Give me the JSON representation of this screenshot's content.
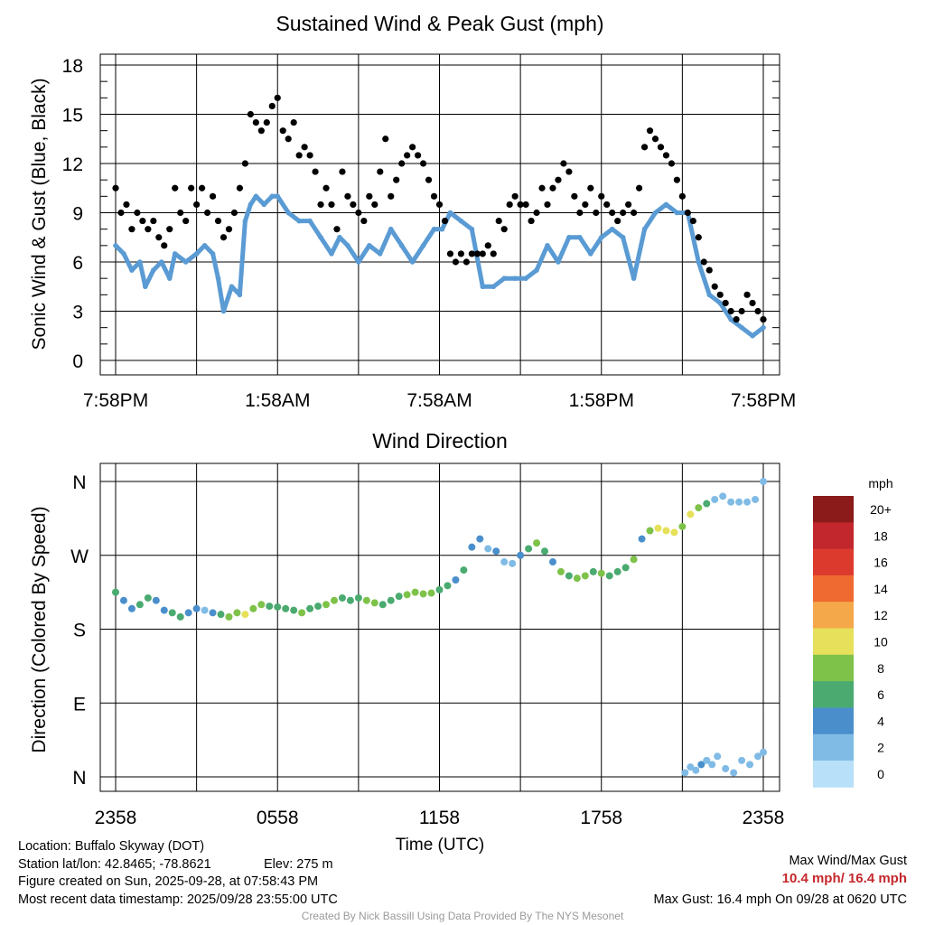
{
  "chart_data": [
    {
      "type": "scatter",
      "title": "Sustained Wind & Peak Gust (mph)",
      "ylabel": "Sonic Wind & Gust (Blue, Black)",
      "ylim": [
        0,
        18
      ],
      "yticks": [
        0,
        3,
        6,
        9,
        12,
        15,
        18
      ],
      "x_hours_range": [
        0,
        24
      ],
      "xtick_hours": [
        0,
        6,
        12,
        18,
        24
      ],
      "xtick_labels": [
        "7:58PM",
        "1:58AM",
        "7:58AM",
        "1:58PM",
        "7:58PM"
      ],
      "series": [
        {
          "name": "Sustained Wind",
          "color": "#5a9bd4",
          "x": [
            0,
            0.3,
            0.6,
            0.9,
            1.1,
            1.4,
            1.7,
            2.0,
            2.2,
            2.6,
            3.0,
            3.3,
            3.6,
            3.8,
            4.0,
            4.3,
            4.6,
            4.8,
            5.0,
            5.2,
            5.5,
            5.8,
            6.0,
            6.4,
            6.8,
            7.2,
            7.6,
            8.0,
            8.3,
            8.6,
            9.0,
            9.4,
            9.8,
            10.2,
            10.6,
            11.0,
            11.4,
            11.8,
            12.1,
            12.4,
            12.8,
            13.2,
            13.6,
            14.0,
            14.4,
            14.8,
            15.2,
            15.6,
            16.0,
            16.4,
            16.8,
            17.2,
            17.6,
            18.0,
            18.4,
            18.8,
            19.2,
            19.6,
            20.0,
            20.4,
            20.8,
            21.2,
            21.6,
            22.0,
            22.4,
            22.8,
            23.2,
            23.6,
            24.0
          ],
          "values": [
            7.0,
            6.5,
            5.5,
            6.0,
            4.5,
            5.5,
            6.0,
            5.0,
            6.5,
            6.0,
            6.5,
            7.0,
            6.5,
            5.0,
            3.0,
            4.5,
            4.0,
            8.5,
            9.5,
            10.0,
            9.5,
            10.0,
            10.0,
            9.0,
            8.5,
            8.5,
            7.5,
            6.5,
            7.5,
            7.0,
            6.0,
            7.0,
            6.5,
            8.0,
            7.0,
            6.0,
            7.0,
            8.0,
            8.0,
            9.0,
            8.5,
            8.0,
            4.5,
            4.5,
            5.0,
            5.0,
            5.0,
            5.5,
            7.0,
            6.0,
            7.5,
            7.5,
            6.5,
            7.5,
            8.0,
            7.5,
            5.0,
            8.0,
            9.0,
            9.5,
            9.0,
            9.0,
            6.0,
            4.0,
            3.5,
            2.5,
            2.0,
            1.5,
            2.0
          ]
        },
        {
          "name": "Peak Gust",
          "color": "#000000",
          "x": [
            0,
            0.2,
            0.4,
            0.6,
            0.8,
            1.0,
            1.2,
            1.4,
            1.6,
            1.8,
            2.0,
            2.2,
            2.4,
            2.6,
            2.8,
            3.0,
            3.2,
            3.4,
            3.6,
            3.8,
            4.0,
            4.2,
            4.4,
            4.6,
            4.8,
            5.0,
            5.2,
            5.4,
            5.6,
            5.8,
            6.0,
            6.2,
            6.4,
            6.6,
            6.8,
            7.0,
            7.2,
            7.4,
            7.6,
            7.8,
            8.0,
            8.2,
            8.4,
            8.6,
            8.8,
            9.0,
            9.2,
            9.4,
            9.6,
            9.8,
            10.0,
            10.2,
            10.4,
            10.6,
            10.8,
            11.0,
            11.2,
            11.4,
            11.6,
            11.8,
            12.0,
            12.2,
            12.4,
            12.6,
            12.8,
            13.0,
            13.2,
            13.4,
            13.6,
            13.8,
            14.0,
            14.2,
            14.4,
            14.6,
            14.8,
            15.0,
            15.2,
            15.4,
            15.6,
            15.8,
            16.0,
            16.2,
            16.4,
            16.6,
            16.8,
            17.0,
            17.2,
            17.4,
            17.6,
            17.8,
            18.0,
            18.2,
            18.4,
            18.6,
            18.8,
            19.0,
            19.2,
            19.4,
            19.6,
            19.8,
            20.0,
            20.2,
            20.4,
            20.6,
            20.8,
            21.0,
            21.2,
            21.4,
            21.6,
            21.8,
            22.0,
            22.2,
            22.4,
            22.6,
            22.8,
            23.0,
            23.2,
            23.4,
            23.6,
            23.8,
            24.0
          ],
          "values": [
            10.5,
            9.0,
            9.5,
            8.0,
            9.0,
            8.5,
            8.0,
            8.5,
            7.5,
            7.0,
            8.0,
            10.5,
            9.0,
            8.5,
            10.5,
            9.5,
            10.5,
            9.0,
            10.0,
            8.5,
            7.5,
            8.0,
            9.0,
            10.5,
            12.0,
            15.0,
            14.5,
            14.0,
            14.5,
            15.5,
            16.0,
            14.0,
            13.5,
            14.5,
            12.5,
            13.0,
            12.5,
            11.5,
            9.5,
            10.5,
            9.5,
            8.0,
            11.5,
            10.0,
            9.5,
            9.0,
            8.5,
            10.0,
            9.5,
            11.5,
            13.5,
            10.0,
            11.0,
            12.0,
            12.5,
            13.0,
            12.5,
            12.0,
            11.0,
            10.0,
            9.5,
            8.5,
            6.5,
            6.0,
            6.5,
            6.0,
            6.5,
            6.5,
            6.5,
            7.0,
            6.5,
            8.5,
            8.0,
            9.5,
            10.0,
            9.5,
            9.5,
            8.5,
            9.0,
            10.5,
            9.5,
            10.5,
            11.0,
            12.0,
            11.5,
            10.0,
            9.0,
            9.5,
            10.5,
            9.0,
            10.0,
            9.5,
            9.0,
            8.5,
            9.0,
            9.5,
            9.0,
            10.5,
            13.0,
            14.0,
            13.5,
            13.0,
            12.5,
            12.0,
            11.0,
            10.0,
            9.0,
            8.5,
            7.5,
            6.0,
            5.5,
            4.5,
            4.0,
            3.5,
            3.0,
            2.5,
            3.0,
            4.0,
            3.5,
            3.0,
            2.5
          ]
        }
      ]
    },
    {
      "type": "scatter",
      "title": "Wind Direction",
      "xlabel": "Time (UTC)",
      "ylabel": "Direction (Colored By Speed)",
      "ylim": [
        0,
        360
      ],
      "yticks": [
        0,
        90,
        180,
        270,
        360
      ],
      "ytick_labels": [
        "N",
        "E",
        "S",
        "W",
        "N"
      ],
      "x_hours_range": [
        0,
        24
      ],
      "xtick_hours": [
        0,
        6,
        12,
        18,
        24
      ],
      "xtick_labels": [
        "2358",
        "0558",
        "1158",
        "1758",
        "2358"
      ],
      "x": [
        0,
        0.3,
        0.6,
        0.9,
        1.2,
        1.5,
        1.8,
        2.1,
        2.4,
        2.7,
        3.0,
        3.3,
        3.6,
        3.9,
        4.2,
        4.5,
        4.8,
        5.1,
        5.4,
        5.7,
        6.0,
        6.3,
        6.6,
        6.9,
        7.2,
        7.5,
        7.8,
        8.1,
        8.4,
        8.7,
        9.0,
        9.3,
        9.6,
        9.9,
        10.2,
        10.5,
        10.8,
        11.1,
        11.4,
        11.7,
        12.0,
        12.3,
        12.6,
        12.9,
        13.2,
        13.5,
        13.8,
        14.1,
        14.4,
        14.7,
        15.0,
        15.3,
        15.6,
        15.9,
        16.2,
        16.5,
        16.8,
        17.1,
        17.4,
        17.7,
        18.0,
        18.3,
        18.6,
        18.9,
        19.2,
        19.5,
        19.8,
        20.1,
        20.4,
        20.7,
        21.0,
        21.3,
        21.6,
        21.9,
        22.2,
        22.5,
        22.8,
        23.1,
        23.4,
        23.7,
        24.0,
        21.1,
        21.3,
        21.5,
        21.7,
        21.9,
        22.1,
        22.3,
        22.6,
        22.9,
        23.2,
        23.5,
        23.8,
        24.0
      ],
      "values": [
        225,
        215,
        205,
        210,
        218,
        215,
        203,
        200,
        195,
        200,
        205,
        203,
        200,
        198,
        195,
        200,
        198,
        205,
        210,
        208,
        207,
        205,
        203,
        200,
        205,
        208,
        210,
        215,
        218,
        215,
        218,
        215,
        212,
        210,
        215,
        220,
        222,
        225,
        223,
        224,
        228,
        233,
        240,
        252,
        280,
        290,
        278,
        275,
        262,
        260,
        270,
        278,
        285,
        275,
        262,
        250,
        245,
        242,
        245,
        250,
        248,
        245,
        250,
        255,
        265,
        290,
        300,
        303,
        300,
        298,
        305,
        320,
        328,
        333,
        338,
        342,
        335,
        335,
        335,
        338,
        360,
        5,
        12,
        8,
        15,
        20,
        15,
        25,
        10,
        5,
        20,
        15,
        25,
        30
      ],
      "speeds": [
        6,
        4,
        5,
        7,
        6,
        5,
        4,
        6,
        6,
        5,
        4,
        3,
        5,
        7,
        8,
        9,
        10,
        8,
        8,
        7,
        7,
        6,
        7,
        8,
        7,
        7,
        8,
        9,
        7,
        6,
        7,
        8,
        8,
        6,
        6,
        7,
        8,
        8,
        9,
        8,
        7,
        6,
        4,
        6,
        5,
        4,
        3,
        4,
        3,
        3,
        5,
        7,
        8,
        6,
        5,
        8,
        7,
        8,
        9,
        7,
        8,
        7,
        6,
        7,
        8,
        4,
        9,
        10,
        10,
        10,
        9,
        10,
        8,
        6,
        3,
        2,
        2,
        3,
        2,
        2,
        2,
        3,
        3,
        2,
        4,
        2,
        3,
        2,
        3,
        2,
        2,
        2,
        3,
        2
      ],
      "colorbar": {
        "title": "mph",
        "labels": [
          "20+",
          "18",
          "16",
          "14",
          "12",
          "10",
          "8",
          "6",
          "4",
          "2",
          "0"
        ],
        "colors": [
          "#8b1a1a",
          "#c1272d",
          "#dd3a2e",
          "#ef6a30",
          "#f4a84a",
          "#e6e05a",
          "#7ec24a",
          "#4aaa70",
          "#4a8fcc",
          "#80bbe6",
          "#b8e0f8"
        ]
      }
    }
  ],
  "info": {
    "location": "Location: Buffalo Skyway (DOT)",
    "latlon": "Station lat/lon: 42.8465; -78.8621",
    "elev": "Elev: 275 m",
    "created": "Figure created on Sun, 2025-09-28, at 07:58:43 PM",
    "recent": "Most recent data timestamp: 2025/09/28 23:55:00 UTC"
  },
  "summary": {
    "heading": "Max Wind/Max Gust",
    "values": "10.4 mph/ 16.4 mph",
    "max_gust": "Max Gust: 16.4 mph On 09/28 at 0620 UTC"
  },
  "footer": "Created By Nick Bassill Using Data Provided By The NYS Mesonet"
}
